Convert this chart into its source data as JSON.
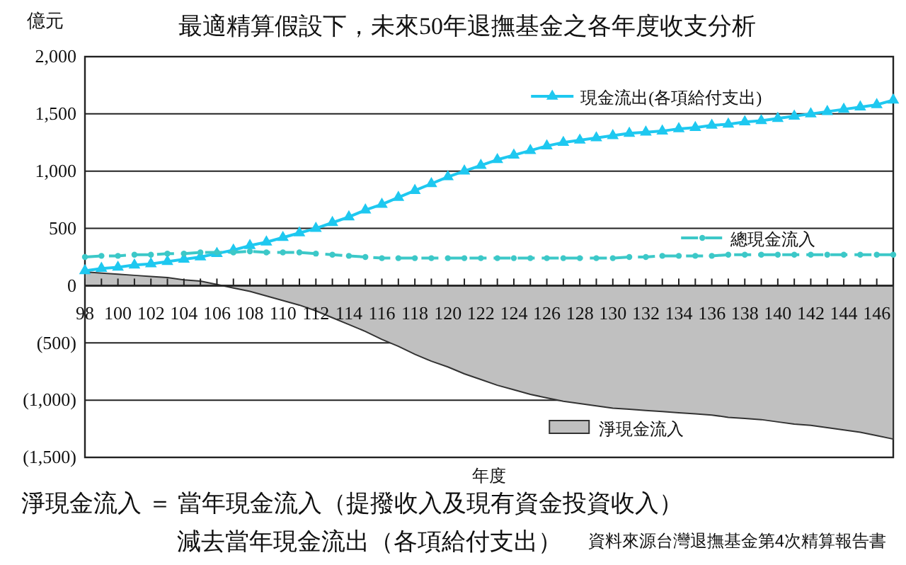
{
  "chart_data": {
    "type": "line",
    "title": "最適精算假設下，未來50年退撫基金之各年度收支分析",
    "xlabel": "年度",
    "ylabel": "億元",
    "x": [
      98,
      99,
      100,
      101,
      102,
      103,
      104,
      105,
      106,
      107,
      108,
      109,
      110,
      111,
      112,
      113,
      114,
      115,
      116,
      117,
      118,
      119,
      120,
      121,
      122,
      123,
      124,
      125,
      126,
      127,
      128,
      129,
      130,
      131,
      132,
      133,
      134,
      135,
      136,
      137,
      138,
      139,
      140,
      141,
      142,
      143,
      144,
      145,
      146,
      147
    ],
    "xlim": [
      98,
      147
    ],
    "xticks": [
      98,
      {
        "value": 99,
        "label": null
      },
      100,
      {
        "value": 101,
        "label": null
      },
      102,
      {
        "value": 103,
        "label": null
      },
      104,
      {
        "value": 105,
        "label": null
      },
      106,
      {
        "value": 107,
        "label": null
      },
      108,
      {
        "value": 109,
        "label": null
      },
      110,
      {
        "value": 111,
        "label": null
      },
      112,
      {
        "value": 113,
        "label": null
      },
      114,
      {
        "value": 115,
        "label": null
      },
      116,
      {
        "value": 117,
        "label": null
      },
      118,
      {
        "value": 119,
        "label": null
      },
      120,
      {
        "value": 121,
        "label": null
      },
      122,
      {
        "value": 123,
        "label": null
      },
      124,
      {
        "value": 125,
        "label": null
      },
      126,
      {
        "value": 127,
        "label": null
      },
      128,
      {
        "value": 129,
        "label": null
      },
      130,
      {
        "value": 131,
        "label": null
      },
      132,
      {
        "value": 133,
        "label": null
      },
      134,
      {
        "value": 135,
        "label": null
      },
      136,
      {
        "value": 137,
        "label": null
      },
      138,
      {
        "value": 139,
        "label": null
      },
      140,
      {
        "value": 141,
        "label": null
      },
      142,
      {
        "value": 143,
        "label": null
      },
      144,
      {
        "value": 145,
        "label": null
      },
      146,
      {
        "value": 147,
        "label": null
      }
    ],
    "ylim": [
      -1500,
      2000
    ],
    "yticks": [
      {
        "value": -1500,
        "label": "(1,500)"
      },
      {
        "value": -1000,
        "label": "(1,000)"
      },
      {
        "value": -500,
        "label": "(500)"
      },
      0,
      500,
      {
        "value": 1000,
        "label": "1,000"
      },
      {
        "value": 1500,
        "label": "1,500"
      },
      {
        "value": 2000,
        "label": "2,000"
      }
    ],
    "grid": "y",
    "legend": "right",
    "series": [
      {
        "name": "淨現金流入",
        "type": "area",
        "color": "#c0c0c0",
        "values": [
          120,
          110,
          100,
          90,
          80,
          70,
          50,
          40,
          10,
          -20,
          -50,
          -90,
          -130,
          -170,
          -220,
          -280,
          -340,
          -400,
          -470,
          -530,
          -600,
          -660,
          -710,
          -770,
          -820,
          -870,
          -910,
          -950,
          -980,
          -1010,
          -1030,
          -1050,
          -1070,
          -1080,
          -1090,
          -1100,
          -1110,
          -1120,
          -1130,
          -1150,
          -1160,
          -1170,
          -1190,
          -1210,
          -1220,
          -1240,
          -1260,
          -1280,
          -1310,
          -1340
        ]
      },
      {
        "name": "現金流出(各項給付支出)",
        "color": "#1ec8f0",
        "marker": "triangle",
        "line_style": "solid",
        "values": [
          130,
          150,
          160,
          180,
          190,
          210,
          230,
          250,
          280,
          310,
          350,
          380,
          420,
          460,
          500,
          550,
          600,
          660,
          710,
          770,
          830,
          890,
          950,
          1000,
          1050,
          1100,
          1140,
          1180,
          1220,
          1250,
          1270,
          1290,
          1310,
          1330,
          1340,
          1350,
          1370,
          1380,
          1400,
          1410,
          1430,
          1440,
          1460,
          1480,
          1500,
          1520,
          1540,
          1560,
          1580,
          1620
        ]
      },
      {
        "name": "總現金流入",
        "color": "#3cc8c8",
        "marker": "circle",
        "line_style": "dashed",
        "values": [
          250,
          260,
          260,
          270,
          270,
          280,
          280,
          290,
          290,
          290,
          300,
          290,
          290,
          290,
          280,
          270,
          260,
          250,
          240,
          240,
          240,
          240,
          240,
          240,
          240,
          240,
          240,
          240,
          240,
          240,
          240,
          240,
          240,
          250,
          250,
          260,
          260,
          260,
          260,
          270,
          270,
          270,
          270,
          270,
          270,
          270,
          270,
          270,
          270,
          270
        ]
      }
    ],
    "annotations": [
      "淨現金流入 ＝ 當年現金流入（提撥收入及現有資金投資收入）",
      "減去當年現金流出（各項給付支出）",
      "資料來源台灣退撫基金第4次精算報告書"
    ]
  }
}
